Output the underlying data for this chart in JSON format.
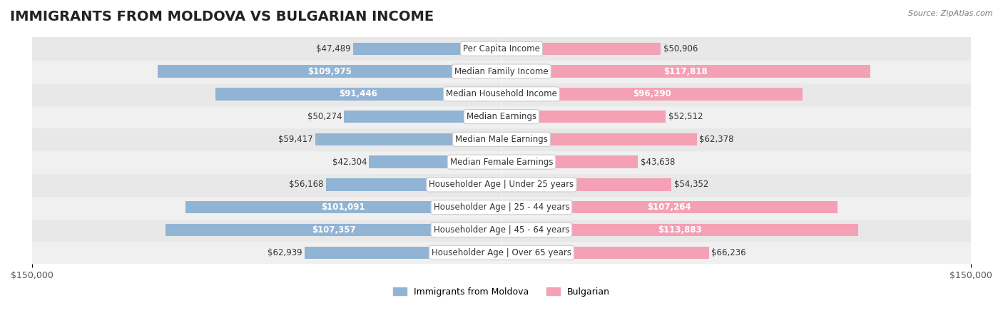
{
  "title": "IMMIGRANTS FROM MOLDOVA VS BULGARIAN INCOME",
  "source": "Source: ZipAtlas.com",
  "categories": [
    "Per Capita Income",
    "Median Family Income",
    "Median Household Income",
    "Median Earnings",
    "Median Male Earnings",
    "Median Female Earnings",
    "Householder Age | Under 25 years",
    "Householder Age | 25 - 44 years",
    "Householder Age | 45 - 64 years",
    "Householder Age | Over 65 years"
  ],
  "moldova_values": [
    47489,
    109975,
    91446,
    50274,
    59417,
    42304,
    56168,
    101091,
    107357,
    62939
  ],
  "bulgarian_values": [
    50906,
    117818,
    96290,
    52512,
    62378,
    43638,
    54352,
    107264,
    113883,
    66236
  ],
  "moldova_labels": [
    "$47,489",
    "$109,975",
    "$91,446",
    "$50,274",
    "$59,417",
    "$42,304",
    "$56,168",
    "$101,091",
    "$107,357",
    "$62,939"
  ],
  "bulgarian_labels": [
    "$50,906",
    "$117,818",
    "$96,290",
    "$52,512",
    "$62,378",
    "$43,638",
    "$54,352",
    "$107,264",
    "$113,883",
    "$66,236"
  ],
  "max_value": 150000,
  "moldova_color": "#92b4d4",
  "bulgarian_color": "#f4a0b5",
  "moldova_color_dark": "#5b8fc9",
  "bulgarian_color_dark": "#f06090",
  "bar_height": 0.55,
  "row_bg_colors": [
    "#f0f0f0",
    "#e8e8e8"
  ],
  "background_color": "#ffffff",
  "title_fontsize": 14,
  "label_fontsize": 8.5,
  "axis_fontsize": 9,
  "legend_fontsize": 9,
  "category_fontsize": 8.5,
  "value_threshold": 80000,
  "legend_moldova": "Immigrants from Moldova",
  "legend_bulgarian": "Bulgarian"
}
